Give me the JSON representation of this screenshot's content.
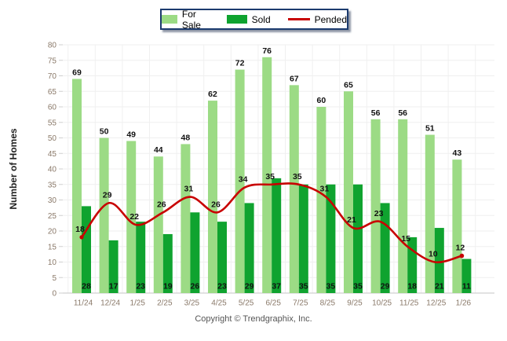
{
  "chart_data": {
    "type": "bar",
    "title": "",
    "categories": [
      "11/24",
      "12/24",
      "1/25",
      "2/25",
      "3/25",
      "4/25",
      "5/25",
      "6/25",
      "7/25",
      "8/25",
      "9/25",
      "10/25",
      "11/25",
      "12/25",
      "1/26"
    ],
    "series": [
      {
        "name": "For Sale",
        "type": "bar",
        "color": "#9CDB85",
        "values": [
          69,
          50,
          49,
          44,
          48,
          62,
          72,
          76,
          67,
          60,
          65,
          56,
          56,
          51,
          43
        ]
      },
      {
        "name": "Sold",
        "type": "bar",
        "color": "#0FA32F",
        "values": [
          28,
          17,
          23,
          19,
          26,
          23,
          29,
          37,
          35,
          35,
          35,
          29,
          18,
          21,
          11
        ]
      },
      {
        "name": "Pended",
        "type": "line",
        "color": "#C80000",
        "values": [
          18,
          29,
          22,
          26,
          31,
          26,
          34,
          35,
          35,
          31,
          21,
          23,
          15,
          10,
          12
        ]
      }
    ],
    "xlabel": "",
    "ylabel": "Number of Homes",
    "ylim": [
      0,
      80
    ],
    "ytick_step": 5,
    "grid": true,
    "legend_position": "top"
  },
  "colors": {
    "grid_h": "#EFEFEF",
    "grid_v": "#F0F0F0",
    "baseline": "#C6C6C6",
    "tick_mark": "#CFCFCF",
    "axis_text": "#8A7969",
    "value_label": "#111111",
    "legend_border": "#1C3B6E",
    "copyright_text": "#555555"
  },
  "footer": {
    "copyright": "Copyright © Trendgraphix, Inc."
  }
}
